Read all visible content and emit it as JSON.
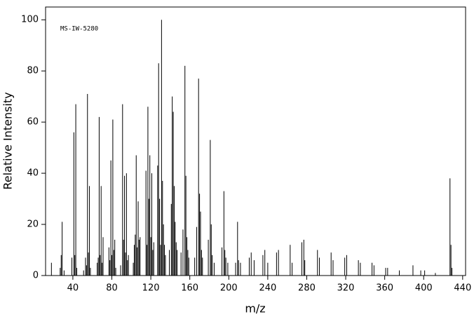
{
  "chart_data": {
    "type": "stem",
    "annotation": "MS-IW-5280",
    "xlabel": "m/z",
    "ylabel": "Relative Intensity",
    "color": "#000000",
    "xlim": [
      12,
      443
    ],
    "ylim": [
      0,
      105
    ],
    "xticks": [
      40,
      80,
      120,
      160,
      200,
      240,
      280,
      320,
      360,
      400,
      440
    ],
    "yticks": [
      0,
      20,
      40,
      60,
      80,
      100
    ],
    "x": [
      18,
      27,
      28,
      29,
      31,
      39,
      41,
      42,
      43,
      44,
      51,
      53,
      54,
      55,
      56,
      57,
      58,
      65,
      66,
      67,
      68,
      69,
      70,
      71,
      77,
      78,
      79,
      80,
      81,
      82,
      83,
      84,
      89,
      91,
      92,
      93,
      94,
      95,
      96,
      97,
      102,
      103,
      104,
      105,
      106,
      107,
      108,
      109,
      115,
      116,
      117,
      118,
      119,
      120,
      121,
      122,
      123,
      127,
      128,
      129,
      130,
      131,
      132,
      133,
      134,
      135,
      139,
      141,
      142,
      143,
      144,
      145,
      146,
      147,
      151,
      153,
      155,
      156,
      157,
      158,
      159,
      165,
      167,
      169,
      170,
      171,
      172,
      173,
      179,
      181,
      182,
      183,
      185,
      193,
      195,
      196,
      197,
      199,
      207,
      209,
      210,
      212,
      221,
      223,
      226,
      235,
      237,
      240,
      249,
      251,
      263,
      265,
      275,
      277,
      278,
      291,
      293,
      305,
      307,
      319,
      321,
      333,
      335,
      347,
      349,
      361,
      363,
      375,
      389,
      397,
      401,
      412,
      427,
      428,
      429
    ],
    "values": [
      5,
      3,
      8,
      21,
      2,
      7,
      56,
      8,
      67,
      3,
      2,
      7,
      4,
      71,
      9,
      35,
      3,
      5,
      7,
      62,
      8,
      35,
      5,
      15,
      11,
      6,
      45,
      8,
      61,
      10,
      14,
      3,
      4,
      67,
      14,
      39,
      9,
      40,
      6,
      8,
      5,
      12,
      16,
      47,
      11,
      29,
      14,
      15,
      41,
      12,
      66,
      30,
      47,
      15,
      40,
      10,
      13,
      43,
      83,
      30,
      12,
      100,
      37,
      20,
      12,
      8,
      10,
      28,
      70,
      64,
      35,
      21,
      13,
      10,
      9,
      18,
      82,
      39,
      15,
      10,
      7,
      7,
      19,
      77,
      32,
      25,
      10,
      7,
      14,
      53,
      20,
      8,
      5,
      11,
      33,
      10,
      7,
      5,
      5,
      21,
      6,
      5,
      7,
      9,
      6,
      8,
      10,
      5,
      9,
      10,
      12,
      5,
      13,
      14,
      6,
      10,
      7,
      9,
      6,
      7,
      8,
      6,
      5,
      5,
      4,
      3,
      3,
      2,
      4,
      2,
      2,
      1,
      38,
      12,
      3
    ]
  }
}
